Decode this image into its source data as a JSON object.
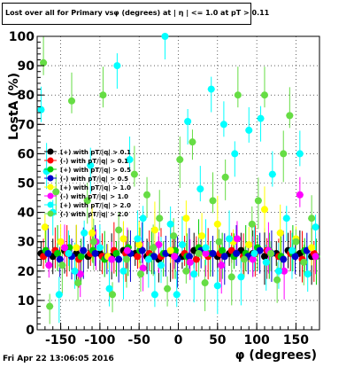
{
  "title": "Lost over all for Primary vsφ (degrees) at | η | <= 1.0 at pT > 0.11",
  "footer": "Fri Apr 22 13:06:05 2016",
  "chart_data": {
    "type": "scatter",
    "xlabel": "φ (degrees)",
    "ylabel": "LostA (%)",
    "xlim": [
      -180,
      180
    ],
    "ylim": [
      0,
      100
    ],
    "x_ticks": [
      -150,
      -100,
      -50,
      0,
      50,
      100,
      150
    ],
    "y_ticks": [
      0,
      10,
      20,
      30,
      40,
      50,
      60,
      70,
      80,
      90,
      100
    ],
    "grid": true,
    "legend_placement": "middle-left",
    "series": [
      {
        "name": "(+) with pT/|q| > 0.1",
        "color": "#000000",
        "x": [
          -175,
          -160,
          -145,
          -130,
          -115,
          -100,
          -85,
          -70,
          -55,
          -40,
          -25,
          -10,
          5,
          20,
          35,
          50,
          65,
          80,
          95,
          110,
          125,
          140,
          155,
          170
        ],
        "y": [
          26,
          25,
          27,
          26,
          25,
          26,
          25,
          27,
          26,
          25,
          24,
          26,
          25,
          27,
          26,
          25,
          26,
          27,
          26,
          25,
          26,
          27,
          26,
          25
        ]
      },
      {
        "name": "(-) with pT/|q| > 0.1",
        "color": "#ff0000",
        "x": [
          -172,
          -157,
          -142,
          -127,
          -112,
          -97,
          -82,
          -67,
          -52,
          -37,
          -22,
          -7,
          8,
          23,
          38,
          53,
          68,
          83,
          98,
          113,
          128,
          143,
          158,
          173
        ],
        "y": [
          25,
          27,
          26,
          24,
          26,
          25,
          27,
          26,
          25,
          26,
          25,
          27,
          26,
          24,
          25,
          26,
          27,
          25,
          26,
          27,
          25,
          26,
          24,
          26
        ]
      },
      {
        "name": "(+) with pT/|q| > 0.5",
        "color": "#00cc00",
        "x": [
          -169,
          -154,
          -139,
          -124,
          -109,
          -94,
          -79,
          -64,
          -49,
          -34,
          -19,
          -4,
          11,
          26,
          41,
          56,
          71,
          86,
          101,
          116,
          131,
          146,
          161,
          176
        ],
        "y": [
          27,
          26,
          28,
          25,
          27,
          24,
          26,
          28,
          27,
          25,
          26,
          27,
          25,
          28,
          26,
          27,
          25,
          26,
          28,
          27,
          25,
          26,
          27,
          25
        ]
      },
      {
        "name": "(-) with pT/|q| > 0.5",
        "color": "#0000cc",
        "x": [
          -166,
          -151,
          -136,
          -121,
          -106,
          -91,
          -76,
          -61,
          -46,
          -31,
          -16,
          -1,
          14,
          29,
          44,
          59,
          74,
          89,
          104,
          119,
          134,
          149,
          164
        ],
        "y": [
          26,
          24,
          25,
          27,
          26,
          25,
          24,
          26,
          27,
          25,
          26,
          24,
          25,
          27,
          26,
          25,
          26,
          25,
          27,
          26,
          24,
          25,
          27
        ]
      },
      {
        "name": "(+) with pT/|q| > 1.0",
        "color": "#ffff00",
        "x": [
          -170,
          -150,
          -130,
          -110,
          -90,
          -70,
          -50,
          -30,
          -10,
          10,
          30,
          50,
          70,
          90,
          110,
          130,
          150,
          170
        ],
        "y": [
          35,
          30,
          28,
          33,
          25,
          31,
          29,
          34,
          27,
          38,
          32,
          36,
          30,
          29,
          41,
          33,
          31,
          28
        ]
      },
      {
        "name": "(-) with pT/|q| > 1.0",
        "color": "#ff00ff",
        "x": [
          -165,
          -145,
          -125,
          -105,
          -85,
          -65,
          -45,
          -25,
          -5,
          15,
          35,
          55,
          75,
          95,
          115,
          135,
          155,
          175
        ],
        "y": [
          22,
          28,
          19,
          30,
          24,
          27,
          21,
          29,
          25,
          23,
          26,
          22,
          31,
          24,
          27,
          20,
          46,
          25
        ]
      },
      {
        "name": "(+) with pT/|q| > 2.0",
        "color": "#00ffff",
        "x": [
          -175,
          -168,
          -160,
          -152,
          -140,
          -132,
          -120,
          -112,
          -100,
          -88,
          -78,
          -70,
          -62,
          -52,
          -45,
          -38,
          -30,
          -22,
          -17,
          -10,
          -2,
          5,
          12,
          20,
          28,
          35,
          42,
          50,
          58,
          65,
          72,
          80,
          90,
          97,
          105,
          112,
          120,
          128,
          138,
          145,
          155,
          165,
          175
        ],
        "y": [
          75,
          54,
          40,
          12,
          26,
          20,
          33,
          56,
          28,
          14,
          90,
          20,
          58,
          31,
          38,
          24,
          12,
          22,
          100,
          36,
          12,
          29,
          71,
          19,
          48,
          28,
          82,
          15,
          70,
          31,
          60,
          18,
          68,
          26,
          72,
          23,
          53,
          20,
          38,
          27,
          60,
          19,
          35
        ]
      },
      {
        "name": "(-) with pT/|q| > 2.0",
        "color": "#66dd44",
        "x": [
          -172,
          -164,
          -156,
          -148,
          -136,
          -128,
          -116,
          -108,
          -96,
          -84,
          -76,
          -66,
          -56,
          -48,
          -40,
          -32,
          -24,
          -14,
          -6,
          2,
          10,
          18,
          26,
          34,
          44,
          52,
          60,
          68,
          76,
          84,
          94,
          102,
          110,
          118,
          126,
          134,
          142,
          150,
          160,
          170
        ],
        "y": [
          91,
          8,
          47,
          22,
          78,
          16,
          44,
          30,
          80,
          12,
          34,
          24,
          53,
          19,
          46,
          28,
          38,
          14,
          32,
          58,
          20,
          64,
          26,
          16,
          44,
          30,
          52,
          18,
          80,
          24,
          36,
          44,
          80,
          26,
          17,
          60,
          73,
          30,
          23,
          38
        ]
      }
    ]
  }
}
